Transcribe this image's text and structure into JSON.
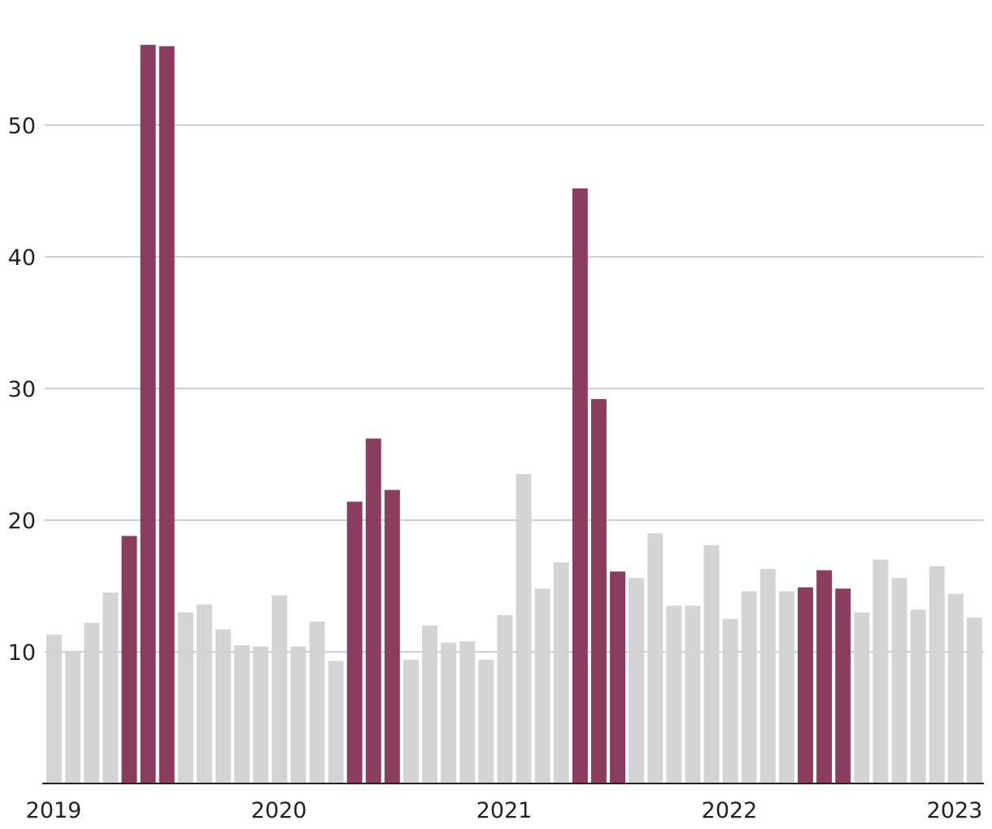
{
  "chart_data": {
    "type": "bar",
    "title": "",
    "xlabel": "",
    "ylabel": "",
    "ylim": [
      0,
      60
    ],
    "yticks": [
      10,
      20,
      30,
      40,
      50
    ],
    "xtick_labels": [
      "2019",
      "2020",
      "2021",
      "2022",
      "2023"
    ],
    "grid": true,
    "colors": {
      "normal": "#d3d4d6",
      "highlight": "#8b3d60",
      "grid": "#cfcfcf",
      "axis": "#222222"
    },
    "categories": [
      "2019-01",
      "2019-02",
      "2019-03",
      "2019-04",
      "2019-05",
      "2019-06",
      "2019-07",
      "2019-08",
      "2019-09",
      "2019-10",
      "2019-11",
      "2019-12",
      "2020-01",
      "2020-02",
      "2020-03",
      "2020-04",
      "2020-05",
      "2020-06",
      "2020-07",
      "2020-08",
      "2020-09",
      "2020-10",
      "2020-11",
      "2020-12",
      "2021-01",
      "2021-02",
      "2021-03",
      "2021-04",
      "2021-05",
      "2021-06",
      "2021-07",
      "2021-08",
      "2021-09",
      "2021-10",
      "2021-11",
      "2021-12",
      "2022-01",
      "2022-02",
      "2022-03",
      "2022-04",
      "2022-05",
      "2022-06",
      "2022-07",
      "2022-08",
      "2022-09",
      "2022-10",
      "2022-11",
      "2022-12",
      "2023-01",
      "2023-02"
    ],
    "values": [
      11.3,
      10.0,
      12.2,
      14.5,
      18.8,
      56.1,
      56.0,
      13.0,
      13.6,
      11.7,
      10.5,
      10.4,
      14.3,
      10.4,
      12.3,
      9.3,
      21.4,
      26.2,
      22.3,
      9.4,
      12.0,
      10.7,
      10.8,
      9.4,
      12.8,
      23.5,
      14.8,
      16.8,
      45.2,
      29.2,
      16.1,
      15.6,
      19.0,
      13.5,
      13.5,
      18.1,
      12.5,
      14.6,
      16.3,
      14.6,
      14.9,
      16.2,
      14.8,
      13.0,
      17.0,
      15.6,
      13.2,
      16.5,
      14.4,
      12.6
    ],
    "highlighted": [
      4,
      5,
      6,
      16,
      17,
      18,
      28,
      29,
      30,
      40,
      41,
      42
    ]
  }
}
